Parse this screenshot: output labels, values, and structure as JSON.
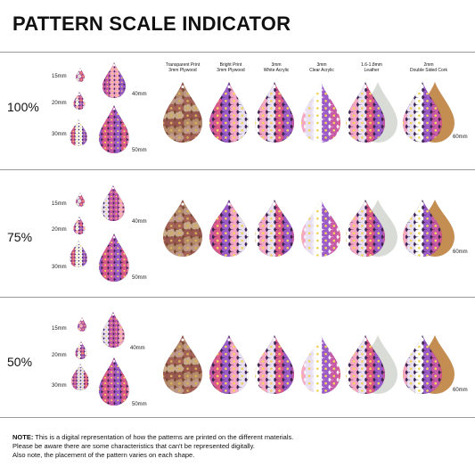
{
  "title": "PATTERN SCALE INDICATOR",
  "scales": [
    "100%",
    "75%",
    "50%"
  ],
  "sizes": [
    "15mm",
    "20mm",
    "30mm",
    "40mm",
    "50mm",
    "60mm"
  ],
  "materials": [
    {
      "line1": "Transparent Print",
      "line2": "3mm Plywood"
    },
    {
      "line1": "Bright Print",
      "line2": "3mm Plywood"
    },
    {
      "line1": "3mm",
      "line2": "White Acrylic"
    },
    {
      "line1": "3mm",
      "line2": "Clear Acrylic"
    },
    {
      "line1": "1.6-1.8mm",
      "line2": "Leather"
    },
    {
      "line1": "2mm",
      "line2": "Double Sided Cork"
    }
  ],
  "note": {
    "bold": "NOTE:",
    "line1": "This is a digital representation of how the patterns are printed on the different materials.",
    "line2": "Please be aware there are some characteristics that can't be represented digitally.",
    "line3": "Also note, the placement of the pattern varies on each shape."
  },
  "colors": {
    "purple": "#3a2350",
    "wood": "#7a4a35",
    "leather": "#d9dbd6",
    "cork": "#c48d52",
    "rule": "#9a9a9a"
  }
}
